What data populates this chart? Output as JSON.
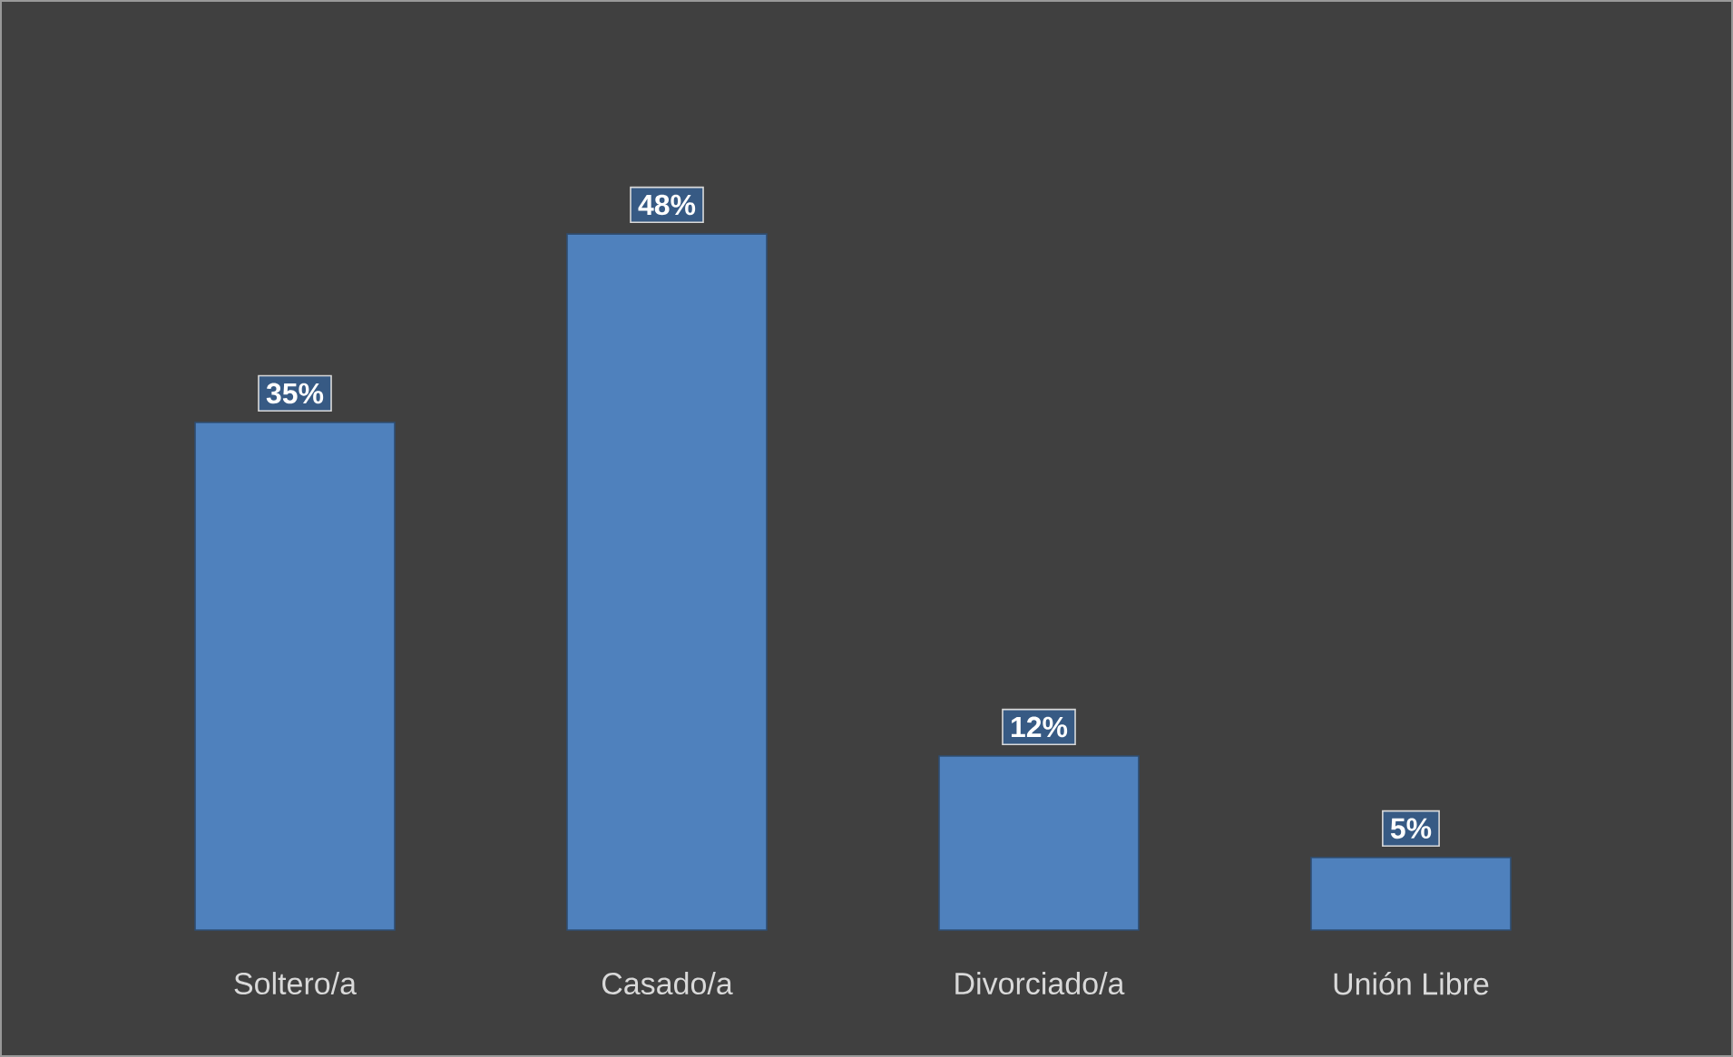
{
  "chart_data": {
    "type": "bar",
    "categories": [
      "Soltero/a",
      "Casado/a",
      "Divorciado/a",
      "Unión Libre"
    ],
    "values": [
      35,
      48,
      12,
      5
    ],
    "value_labels": [
      "35%",
      "48%",
      "12%",
      "5%"
    ],
    "color": "#4f81bd"
  }
}
